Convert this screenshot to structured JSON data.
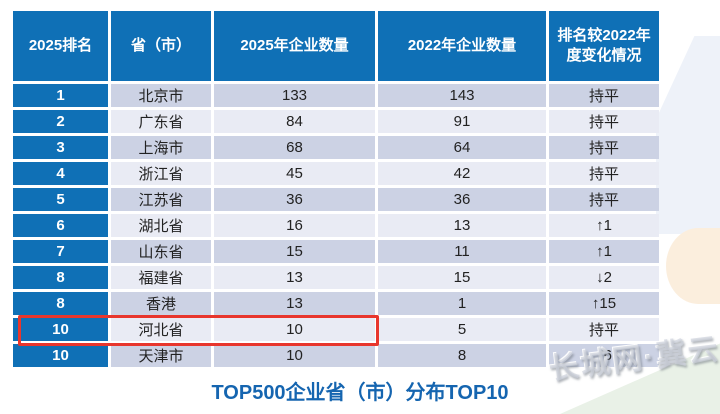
{
  "table": {
    "headers": [
      "2025排名",
      "省（市）",
      "2025年企业数量",
      "2022年企业数量",
      "排名较2022年度变化情况"
    ],
    "rows": [
      {
        "rank": "1",
        "province": "北京市",
        "count_2025": "133",
        "count_2022": "143",
        "change": "持平"
      },
      {
        "rank": "2",
        "province": "广东省",
        "count_2025": "84",
        "count_2022": "91",
        "change": "持平"
      },
      {
        "rank": "3",
        "province": "上海市",
        "count_2025": "68",
        "count_2022": "64",
        "change": "持平"
      },
      {
        "rank": "4",
        "province": "浙江省",
        "count_2025": "45",
        "count_2022": "42",
        "change": "持平"
      },
      {
        "rank": "5",
        "province": "江苏省",
        "count_2025": "36",
        "count_2022": "36",
        "change": "持平"
      },
      {
        "rank": "6",
        "province": "湖北省",
        "count_2025": "16",
        "count_2022": "13",
        "change": "↑1"
      },
      {
        "rank": "7",
        "province": "山东省",
        "count_2025": "15",
        "count_2022": "11",
        "change": "↑1"
      },
      {
        "rank": "8",
        "province": "福建省",
        "count_2025": "13",
        "count_2022": "15",
        "change": "↓2"
      },
      {
        "rank": "8",
        "province": "香港",
        "count_2025": "13",
        "count_2022": "1",
        "change": "↑15"
      },
      {
        "rank": "10",
        "province": "河北省",
        "count_2025": "10",
        "count_2022": "5",
        "change": "持平"
      },
      {
        "rank": "10",
        "province": "天津市",
        "count_2025": "10",
        "count_2022": "8",
        "change": "↑6"
      }
    ],
    "highlighted_row_index": 9
  },
  "caption": "TOP500企业省（市）分布TOP10",
  "watermark": "长城网·冀云",
  "colors": {
    "header_blue": "#0f70b6",
    "row_dark": "#ccd2e4",
    "row_light": "#e9ebf4",
    "highlight_red": "#e8362d",
    "caption_blue": "#1565b0"
  },
  "chart_data": {
    "type": "table",
    "title": "TOP500企业省（市）分布TOP10",
    "columns": [
      "2025排名",
      "省（市）",
      "2025年企业数量",
      "2022年企业数量",
      "排名较2022年度变化情况"
    ],
    "rows": [
      [
        "1",
        "北京市",
        133,
        143,
        "持平"
      ],
      [
        "2",
        "广东省",
        84,
        91,
        "持平"
      ],
      [
        "3",
        "上海市",
        68,
        64,
        "持平"
      ],
      [
        "4",
        "浙江省",
        45,
        42,
        "持平"
      ],
      [
        "5",
        "江苏省",
        36,
        36,
        "持平"
      ],
      [
        "6",
        "湖北省",
        16,
        13,
        "↑1"
      ],
      [
        "7",
        "山东省",
        15,
        11,
        "↑1"
      ],
      [
        "8",
        "福建省",
        13,
        15,
        "↓2"
      ],
      [
        "8",
        "香港",
        13,
        1,
        "↑15"
      ],
      [
        "10",
        "河北省",
        10,
        5,
        "持平"
      ],
      [
        "10",
        "天津市",
        10,
        8,
        "↑6"
      ]
    ]
  }
}
